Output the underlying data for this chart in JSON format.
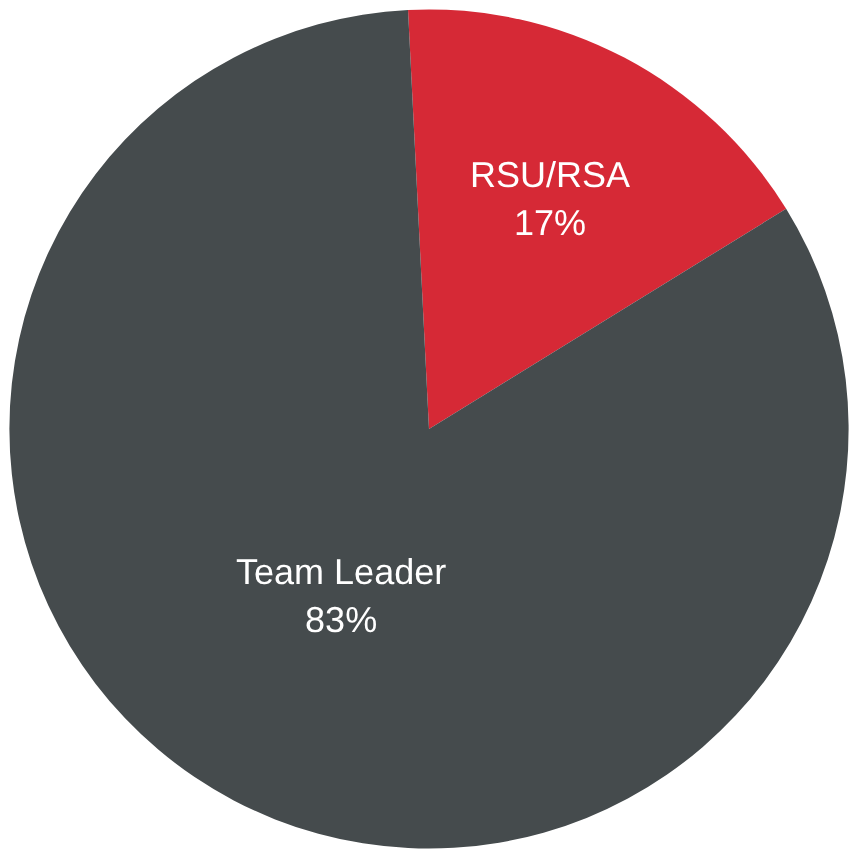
{
  "chart_data": {
    "type": "pie",
    "categories": [
      "RSU/RSA",
      "Team Leader"
    ],
    "values": [
      17,
      83
    ],
    "colors": [
      "#d62936",
      "#454b4d"
    ],
    "value_labels": [
      "17%",
      "83%"
    ]
  }
}
